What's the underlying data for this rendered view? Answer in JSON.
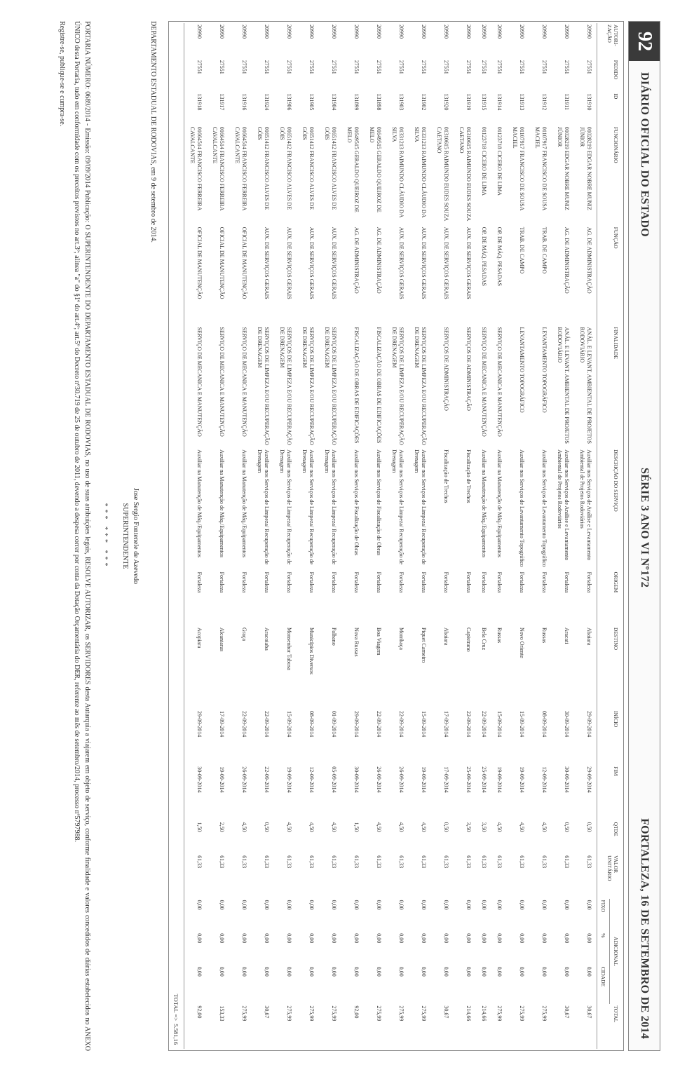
{
  "header": {
    "page_number": "92",
    "title": "DIÁRIO OFICIAL DO ESTADO",
    "series": "SÉRIE 3  ANO VI  Nº172",
    "city_date": "FORTALEZA, 16 DE SETEMBRO DE 2014"
  },
  "table": {
    "columns": {
      "autorizacao": "AUTORI-\nZAÇÃO",
      "pedido": "PEDIDO",
      "id": "ID",
      "funcionario": "FUNCIONÁRIO",
      "funcao": "FUNÇÃO",
      "finalidade": "FINALIDADE",
      "descricao": "DESCRIÇÃO DO SERVIÇO",
      "origem": "ORIGEM",
      "destino": "DESTINO",
      "inicio": "INÍCIO",
      "fim": "FIM",
      "qtde": "QTDE",
      "valor": "VALOR UNITÁRIO",
      "adicional": "ADICIONAL",
      "fixo": "FIXO",
      "pct": "%",
      "cidade": "CIDADE",
      "total": "TOTAL"
    },
    "rows": [
      {
        "aut": "20990",
        "ped": "27551",
        "id": "131910",
        "func": "01028219 EDGAR NOBRE MUNIZ JÚNIOR",
        "cargo": "AG. DE ADMINISTRAÇÃO",
        "fin": "ANÁL. E LEVANT. AMBIENTAL DE PROJETOS RODOVIÁRIO",
        "desc": "Auxiliar nos Serviços de Análise e Levantamento Ambiental de Projetos Rodoviários",
        "orig": "Fortaleza",
        "dest": "Abaiara",
        "ini": "29-09-2014",
        "fim": "29-09-2014",
        "qtd": "0,50",
        "val": "61,33",
        "fix": "0,00",
        "pct": "0,00",
        "cid": "0,00",
        "tot": "30,67"
      },
      {
        "aut": "20990",
        "ped": "27551",
        "id": "131911",
        "func": "01028219 EDGAR NOBRE MUNIZ JÚNIOR",
        "cargo": "AG. DE ADMINISTRAÇÃO",
        "fin": "ANÁL. E LEVANT. AMBIENTAL DE PROJETOS RODOVIÁRIO",
        "desc": "Auxiliar nos Serviços de Análise e Levantamento Ambiental de Projetos Rodoviários",
        "orig": "Fortaleza",
        "dest": "Aracati",
        "ini": "30-09-2014",
        "fim": "30-09-2014",
        "qtd": "0,50",
        "val": "61,33",
        "fix": "0,00",
        "pct": "0,00",
        "cid": "0,00",
        "tot": "30,67"
      },
      {
        "aut": "20990",
        "ped": "27551",
        "id": "131912",
        "func": "01107917 FRANCISCO DE SOUSA MACIEL",
        "cargo": "TRAB. DE CAMPO",
        "fin": "LEVANTAMENTO TOPOGRÁFICO",
        "desc": "Auxiliar nos Serviços de Levantamento Topográfico",
        "orig": "Fortaleza",
        "dest": "Russas",
        "ini": "08-09-2014",
        "fim": "12-09-2014",
        "qtd": "4,50",
        "val": "61,33",
        "fix": "0,00",
        "pct": "0,00",
        "cid": "0,00",
        "tot": "275,99"
      },
      {
        "aut": "20990",
        "ped": "27551",
        "id": "131913",
        "func": "01107917 FRANCISCO DE SOUSA MACIEL",
        "cargo": "TRAB. DE CAMPO",
        "fin": "LEVANTAMENTO TOPOGRÁFICO",
        "desc": "Auxiliar nos Serviços de Levantamento Topográfico",
        "orig": "Fortaleza",
        "dest": "Novo Oriente",
        "ini": "15-09-2014",
        "fim": "19-09-2014",
        "qtd": "4,50",
        "val": "61,33",
        "fix": "0,00",
        "pct": "0,00",
        "cid": "0,00",
        "tot": "275,99"
      },
      {
        "aut": "20990",
        "ped": "27551",
        "id": "131914",
        "func": "01123718 CICERO DE LIMA",
        "cargo": "OP. DE MÁQ. PESADAS",
        "fin": "SERVIÇO DE MECANICA E MANUTENÇÃO",
        "desc": "Auxiliar na Manutenção de Máq./Equipamentos",
        "orig": "Fortaleza",
        "dest": "Russas",
        "ini": "15-09-2014",
        "fim": "19-09-2014",
        "qtd": "4,50",
        "val": "61,33",
        "fix": "0,00",
        "pct": "0,00",
        "cid": "0,00",
        "tot": "275,99"
      },
      {
        "aut": "20990",
        "ped": "27551",
        "id": "131915",
        "func": "01123718 CICERO DE LIMA",
        "cargo": "OP. DE MÁQ. PESADAS",
        "fin": "SERVIÇO DE MECANICA E MANUTENÇÃO",
        "desc": "Auxiliar na Manutenção de Máq./Equipamentos",
        "orig": "Fortaleza",
        "dest": "Bela Cruz",
        "ini": "22-09-2014",
        "fim": "25-09-2014",
        "qtd": "3,50",
        "val": "61,33",
        "fix": "0,00",
        "pct": "0,00",
        "cid": "0,00",
        "tot": "214,66"
      },
      {
        "aut": "20990",
        "ped": "27551",
        "id": "131919",
        "func": "01310615 RAIMUNDO EUDES SOUZA CAETANO",
        "cargo": "AUX. DE SERVIÇOS GERAIS",
        "fin": "SERVIÇOS DE ADMINISTRAÇÃO",
        "desc": "Fiscalização de Trechos",
        "orig": "Fortaleza",
        "dest": "Capistrano",
        "ini": "22-09-2014",
        "fim": "25-09-2014",
        "qtd": "3,50",
        "val": "61,33",
        "fix": "0,00",
        "pct": "0,00",
        "cid": "0,00",
        "tot": "214,66"
      },
      {
        "aut": "20990",
        "ped": "27551",
        "id": "131920",
        "func": "01310615 RAIMUNDO EUDES SOUZA CAETANO",
        "cargo": "AUX. DE SERVIÇOS GERAIS",
        "fin": "SERVIÇOS DE ADMINISTRAÇÃO",
        "desc": "Fiscalização de Trechos",
        "orig": "Fortaleza",
        "dest": "Abaiara",
        "ini": "17-09-2014",
        "fim": "17-09-2014",
        "qtd": "0,50",
        "val": "61,33",
        "fix": "0,00",
        "pct": "0,00",
        "cid": "0,00",
        "tot": "30,67"
      },
      {
        "aut": "20990",
        "ped": "27551",
        "id": "131902",
        "func": "01331213 RAIMUNDO CLÁUDIO DA SILVA",
        "cargo": "AUX. DE SERVIÇOS GERAIS",
        "fin": "SERVIÇOS DE LIMPEZA E/OU RECUPERAÇÃO DE DRENAGEM",
        "desc": "Auxiliar nos Serviços de Limpeza/ Recuperação de Drenagem",
        "orig": "Fortaleza",
        "dest": "Piquet Carneiro",
        "ini": "15-09-2014",
        "fim": "19-09-2014",
        "qtd": "4,50",
        "val": "61,33",
        "fix": "0,00",
        "pct": "0,00",
        "cid": "0,00",
        "tot": "275,99"
      },
      {
        "aut": "20990",
        "ped": "27551",
        "id": "131903",
        "func": "01331213 RAIMUNDO CLÁUDIO DA SILVA",
        "cargo": "AUX. DE SERVIÇOS GERAIS",
        "fin": "SERVIÇOS DE LIMPEZA E/OU RECUPERAÇÃO DE DRENAGEM",
        "desc": "Auxiliar nos Serviços de Limpeza/ Recuperação de Drenagem",
        "orig": "Fortaleza",
        "dest": "Mombaça",
        "ini": "22-09-2014",
        "fim": "26-09-2014",
        "qtd": "4,50",
        "val": "61,33",
        "fix": "0,00",
        "pct": "0,00",
        "cid": "0,00",
        "tot": "275,99"
      },
      {
        "aut": "20990",
        "ped": "27551",
        "id": "131898",
        "func": "01649515 GERALDO QUEIROZ DE MELO",
        "cargo": "AG. DE ADMINISTRAÇÃO",
        "fin": "FISCALIZAÇÃO DE OBRAS DE EDIFICAÇÕES",
        "desc": "Auxiliar nos Serviços de Fiscalização de Obras",
        "orig": "Fortaleza",
        "dest": "Boa Viagem",
        "ini": "22-09-2014",
        "fim": "26-09-2014",
        "qtd": "4,50",
        "val": "61,33",
        "fix": "0,00",
        "pct": "0,00",
        "cid": "0,00",
        "tot": "275,99"
      },
      {
        "aut": "20990",
        "ped": "27551",
        "id": "131899",
        "func": "01649515 GERALDO QUEIROZ DE MELO",
        "cargo": "AG. DE ADMINISTRAÇÃO",
        "fin": "FISCALIZAÇÃO DE OBRAS DE EDIFICAÇÕES",
        "desc": "Auxiliar nos Serviços de Fiscalização de Obras",
        "orig": "Fortaleza",
        "dest": "Nova Russas",
        "ini": "29-09-2014",
        "fim": "30-09-2014",
        "qtd": "1,50",
        "val": "61,33",
        "fix": "0,00",
        "pct": "0,00",
        "cid": "0,00",
        "tot": "92,00"
      },
      {
        "aut": "20990",
        "ped": "27551",
        "id": "131904",
        "func": "01651412 FRANCISCO ALVES DE GÓIS",
        "cargo": "AUX. DE SERVIÇOS GERAIS",
        "fin": "SERVIÇOS DE LIMPEZA E/OU RECUPERAÇÃO DE DRENAGEM",
        "desc": "Auxiliar nos Serviços de Limpeza/ Recuperação de Drenagem",
        "orig": "Fortaleza",
        "dest": "Palhano",
        "ini": "01-09-2014",
        "fim": "05-09-2014",
        "qtd": "4,50",
        "val": "61,33",
        "fix": "0,00",
        "pct": "0,00",
        "cid": "0,00",
        "tot": "275,99"
      },
      {
        "aut": "20990",
        "ped": "27551",
        "id": "131905",
        "func": "01651412 FRANCISCO ALVES DE GÓIS",
        "cargo": "AUX. DE SERVIÇOS GERAIS",
        "fin": "SERVIÇOS DE LIMPEZA E/OU RECUPERAÇÃO DE DRENAGEM",
        "desc": "Auxiliar nos Serviços de Limpeza/ Recuperação de Drenagem",
        "orig": "Fortaleza",
        "dest": "Municípios Diversos",
        "ini": "08-09-2014",
        "fim": "12-09-2014",
        "qtd": "4,50",
        "val": "61,33",
        "fix": "0,00",
        "pct": "0,00",
        "cid": "0,00",
        "tot": "275,99"
      },
      {
        "aut": "20990",
        "ped": "27551",
        "id": "131906",
        "func": "01651412 FRANCISCO ALVES DE GÓIS",
        "cargo": "AUX. DE SERVIÇOS GERAIS",
        "fin": "SERVIÇOS DE LIMPEZA E/OU RECUPERAÇÃO DE DRENAGEM",
        "desc": "Auxiliar nos Serviços de Limpeza/ Recuperação de Drenagem",
        "orig": "Fortaleza",
        "dest": "Monsenhor Tabosa",
        "ini": "15-09-2014",
        "fim": "19-09-2014",
        "qtd": "4,50",
        "val": "61,33",
        "fix": "0,00",
        "pct": "0,00",
        "cid": "0,00",
        "tot": "275,99"
      },
      {
        "aut": "20990",
        "ped": "27551",
        "id": "131924",
        "func": "01651412 FRANCISCO ALVES DE GÓIS",
        "cargo": "AUX. DE SERVIÇOS GERAIS",
        "fin": "SERVIÇOS DE LIMPEZA E/OU RECUPERAÇÃO DE DRENAGEM",
        "desc": "Auxiliar nos Serviços de Limpeza/ Recuperação de Drenagem",
        "orig": "Fortaleza",
        "dest": "Aracoiaba",
        "ini": "22-09-2014",
        "fim": "22-09-2014",
        "qtd": "0,50",
        "val": "61,33",
        "fix": "0,00",
        "pct": "0,00",
        "cid": "0,00",
        "tot": "30,67"
      },
      {
        "aut": "20990",
        "ped": "27551",
        "id": "131916",
        "func": "01664514 FRANCISCO FERREIRA CAVALCANTE",
        "cargo": "OFICIAL DE MANUTENÇÃO",
        "fin": "SERVIÇO DE MECANICA E MANUTENÇÃO",
        "desc": "Auxiliar na Manutenção de Máq./Equipamentos",
        "orig": "Fortaleza",
        "dest": "Graça",
        "ini": "22-09-2014",
        "fim": "26-09-2014",
        "qtd": "4,50",
        "val": "61,33",
        "fix": "0,00",
        "pct": "0,00",
        "cid": "0,00",
        "tot": "275,99"
      },
      {
        "aut": "20990",
        "ped": "27551",
        "id": "131917",
        "func": "01664514 FRANCISCO FERREIRA CAVALCANTE",
        "cargo": "OFICIAL DE MANUTENÇÃO",
        "fin": "SERVIÇO DE MECANICA E MANUTENÇÃO",
        "desc": "Auxiliar na Manutenção de Máq./Equipamentos",
        "orig": "Fortaleza",
        "dest": "Alcantaras",
        "ini": "17-09-2014",
        "fim": "19-09-2014",
        "qtd": "2,50",
        "val": "61,33",
        "fix": "0,00",
        "pct": "0,00",
        "cid": "0,00",
        "tot": "153,33"
      },
      {
        "aut": "20990",
        "ped": "27551",
        "id": "131918",
        "func": "01664514 FRANCISCO FERREIRA CAVALCANTE",
        "cargo": "OFICIAL DE MANUTENÇÃO",
        "fin": "SERVIÇO DE MECANICA E MANUTENÇÃO",
        "desc": "Auxiliar na Manutenção de Máq./Equipamentos",
        "orig": "Fortaleza",
        "dest": "Acopiara",
        "ini": "29-09-2014",
        "fim": "30-09-2014",
        "qtd": "1,50",
        "val": "61,33",
        "fix": "0,00",
        "pct": "0,00",
        "cid": "0,00",
        "tot": "92,00"
      }
    ],
    "total_label": "TOTAL =>",
    "total_value": "5.581,16"
  },
  "footer": {
    "dept_line": "DEPARTAMENTO ESTADUAL DE RODOVIAS, em 9 de setembro de 2014.",
    "signature_name": "Jose Sergio Fontenele de Azevedo",
    "signature_title": "SUPERINTENDENTE",
    "stars": "***  ***  ***",
    "portaria": "PORTARIA NÚMERO: 0689/2014 - Emissão: 09/09/2014 Publicação: O SUPERINTENDENTE DO DEPARTAMENTO ESTADUAL DE RODOVIAS, no uso de suas atribuições legais, RESOLVE AUTORIZAR, os SERVIDORES desta Autarquia a viajarem em objeto de serviço, conforme finalidade e valores concedidos de diárias estabelecidos no ANEXO ÚNICO desta Portaria, tudo em conformidade com os preceitos previstos no art.3º; alínea \"a\" do §1º do art.4º; art.5º do Decreto nº30.719 de 25 de outubro de 2011, devendo a despesa correr por conta da Dotação Orçamentária do DER, referente ao mês de setembro/2014, processo nº5797988.",
    "registrese": "Registre-se, publique-se e cumpra-se."
  }
}
